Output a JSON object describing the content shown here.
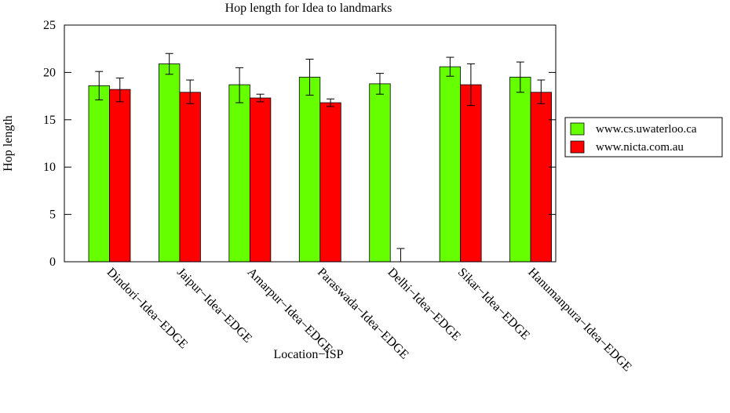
{
  "chart_data": {
    "type": "bar",
    "title": "Hop length for Idea to landmarks",
    "xlabel": "Location−ISP",
    "ylabel": "Hop length",
    "ylim": [
      0,
      25
    ],
    "yticks": [
      0,
      5,
      10,
      15,
      20,
      25
    ],
    "grid": false,
    "legend_position": "right",
    "categories": [
      "Dindori−Idea−EDGE",
      "Jaipur−Idea−EDGE",
      "Amarpur−Idea−EDGE",
      "Paraswada−Idea−EDGE",
      "Delhi−Idea−EDGE",
      "Sikar−Idea−EDGE",
      "Hanumanpura−Idea−EDGE"
    ],
    "series": [
      {
        "name": "www.cs.uwaterloo.ca",
        "color": "#66ff00",
        "values": [
          18.6,
          20.9,
          18.7,
          19.5,
          18.8,
          20.6,
          19.5
        ],
        "error_low": [
          17.1,
          19.8,
          16.8,
          17.6,
          17.7,
          19.6,
          17.9
        ],
        "error_high": [
          20.1,
          22.0,
          20.5,
          21.4,
          19.9,
          21.6,
          21.1
        ]
      },
      {
        "name": "www.nicta.com.au",
        "color": "#ff0000",
        "values": [
          18.2,
          17.9,
          17.3,
          16.8,
          0,
          18.7,
          17.9
        ],
        "error_low": [
          16.9,
          16.7,
          16.9,
          16.4,
          -1.4,
          16.5,
          16.7
        ],
        "error_high": [
          19.4,
          19.2,
          17.7,
          17.2,
          1.4,
          20.9,
          19.2
        ]
      }
    ]
  }
}
